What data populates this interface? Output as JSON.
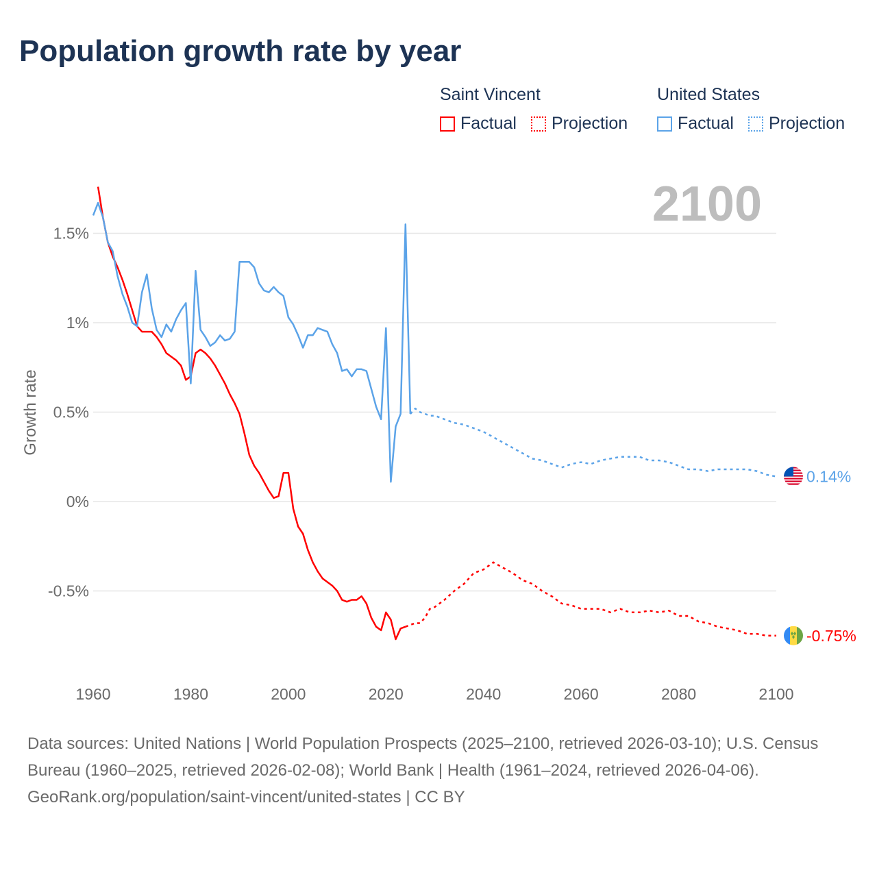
{
  "chart_data": {
    "type": "line",
    "title": "Population growth rate by year",
    "ylabel": "Growth rate",
    "xlabel": "",
    "xlim": [
      1960,
      2100
    ],
    "ylim": [
      -0.9,
      1.8
    ],
    "x_ticks": [
      1960,
      1980,
      2000,
      2020,
      2040,
      2060,
      2080,
      2100
    ],
    "x_tick_labels": [
      "1960",
      "1980",
      "2000",
      "2020",
      "2040",
      "2060",
      "2080",
      "2100"
    ],
    "y_ticks": [
      1.5,
      1,
      0.5,
      0,
      -0.5
    ],
    "y_tick_labels": [
      "1.5%",
      "1%",
      "0.5%",
      "0%",
      "-0.5%"
    ],
    "grid": true,
    "year_watermark": "2100",
    "legend": {
      "placement": "top-right",
      "groups": [
        {
          "name": "Saint Vincent",
          "factual": "Factual",
          "projection": "Projection",
          "color": "#ff0000"
        },
        {
          "name": "United States",
          "factual": "Factual",
          "projection": "Projection",
          "color": "#5ba3e8"
        }
      ]
    },
    "series": [
      {
        "name": "Saint Vincent",
        "kind": "factual",
        "color": "#ff0000",
        "x": [
          1961,
          1962,
          1963,
          1964,
          1965,
          1966,
          1967,
          1968,
          1969,
          1970,
          1971,
          1972,
          1973,
          1974,
          1975,
          1976,
          1977,
          1978,
          1979,
          1980,
          1981,
          1982,
          1983,
          1984,
          1985,
          1986,
          1987,
          1988,
          1989,
          1990,
          1991,
          1992,
          1993,
          1994,
          1995,
          1996,
          1997,
          1998,
          1999,
          2000,
          2001,
          2002,
          2003,
          2004,
          2005,
          2006,
          2007,
          2008,
          2009,
          2010,
          2011,
          2012,
          2013,
          2014,
          2015,
          2016,
          2017,
          2018,
          2019,
          2020,
          2021,
          2022,
          2023,
          2024
        ],
        "y": [
          1.76,
          1.59,
          1.45,
          1.37,
          1.31,
          1.24,
          1.16,
          1.07,
          0.98,
          0.95,
          0.95,
          0.95,
          0.92,
          0.88,
          0.83,
          0.81,
          0.79,
          0.76,
          0.68,
          0.7,
          0.83,
          0.85,
          0.83,
          0.8,
          0.76,
          0.71,
          0.66,
          0.6,
          0.55,
          0.49,
          0.38,
          0.26,
          0.2,
          0.16,
          0.11,
          0.06,
          0.02,
          0.03,
          0.16,
          0.16,
          -0.04,
          -0.14,
          -0.18,
          -0.27,
          -0.34,
          -0.39,
          -0.43,
          -0.45,
          -0.47,
          -0.5,
          -0.55,
          -0.56,
          -0.55,
          -0.55,
          -0.53,
          -0.57,
          -0.65,
          -0.7,
          -0.72,
          -0.62,
          -0.66,
          -0.77,
          -0.71,
          -0.7
        ]
      },
      {
        "name": "Saint Vincent",
        "kind": "projection",
        "color": "#ff0000",
        "x": [
          2024,
          2025,
          2026,
          2027,
          2028,
          2029,
          2030,
          2032,
          2034,
          2036,
          2038,
          2040,
          2042,
          2044,
          2046,
          2048,
          2050,
          2052,
          2054,
          2056,
          2058,
          2060,
          2062,
          2064,
          2066,
          2068,
          2070,
          2072,
          2074,
          2076,
          2078,
          2080,
          2082,
          2084,
          2086,
          2088,
          2090,
          2092,
          2094,
          2096,
          2098,
          2100
        ],
        "y": [
          -0.7,
          -0.69,
          -0.68,
          -0.68,
          -0.65,
          -0.6,
          -0.59,
          -0.55,
          -0.5,
          -0.46,
          -0.4,
          -0.38,
          -0.34,
          -0.37,
          -0.4,
          -0.44,
          -0.46,
          -0.5,
          -0.53,
          -0.57,
          -0.58,
          -0.6,
          -0.6,
          -0.6,
          -0.62,
          -0.6,
          -0.62,
          -0.62,
          -0.61,
          -0.62,
          -0.61,
          -0.64,
          -0.64,
          -0.67,
          -0.68,
          -0.7,
          -0.71,
          -0.72,
          -0.74,
          -0.74,
          -0.75,
          -0.75
        ]
      },
      {
        "name": "United States",
        "kind": "factual",
        "color": "#5ba3e8",
        "x": [
          1960,
          1961,
          1962,
          1963,
          1964,
          1965,
          1966,
          1967,
          1968,
          1969,
          1970,
          1971,
          1972,
          1973,
          1974,
          1975,
          1976,
          1977,
          1978,
          1979,
          1980,
          1981,
          1982,
          1983,
          1984,
          1985,
          1986,
          1987,
          1988,
          1989,
          1990,
          1991,
          1992,
          1993,
          1994,
          1995,
          1996,
          1997,
          1998,
          1999,
          2000,
          2001,
          2002,
          2003,
          2004,
          2005,
          2006,
          2007,
          2008,
          2009,
          2010,
          2011,
          2012,
          2013,
          2014,
          2015,
          2016,
          2017,
          2018,
          2019,
          2020,
          2021,
          2022,
          2023,
          2024,
          2025
        ],
        "y": [
          1.6,
          1.67,
          1.59,
          1.45,
          1.4,
          1.26,
          1.16,
          1.09,
          1.0,
          0.98,
          1.17,
          1.27,
          1.08,
          0.96,
          0.92,
          0.99,
          0.95,
          1.02,
          1.07,
          1.11,
          0.66,
          1.29,
          0.96,
          0.92,
          0.87,
          0.89,
          0.93,
          0.9,
          0.91,
          0.95,
          1.34,
          1.34,
          1.34,
          1.31,
          1.22,
          1.18,
          1.17,
          1.2,
          1.17,
          1.15,
          1.03,
          0.99,
          0.93,
          0.86,
          0.93,
          0.93,
          0.97,
          0.96,
          0.95,
          0.88,
          0.83,
          0.73,
          0.74,
          0.7,
          0.74,
          0.74,
          0.73,
          0.63,
          0.53,
          0.46,
          0.97,
          0.11,
          0.42,
          0.49,
          1.55,
          0.49
        ]
      },
      {
        "name": "United States",
        "kind": "projection",
        "color": "#5ba3e8",
        "x": [
          2025,
          2026,
          2027,
          2028,
          2029,
          2030,
          2032,
          2034,
          2036,
          2038,
          2040,
          2042,
          2044,
          2046,
          2048,
          2050,
          2052,
          2054,
          2056,
          2058,
          2060,
          2062,
          2064,
          2066,
          2068,
          2070,
          2072,
          2074,
          2076,
          2078,
          2080,
          2082,
          2084,
          2086,
          2088,
          2090,
          2092,
          2094,
          2096,
          2098,
          2100
        ],
        "y": [
          0.49,
          0.52,
          0.5,
          0.49,
          0.48,
          0.48,
          0.46,
          0.44,
          0.43,
          0.41,
          0.39,
          0.36,
          0.33,
          0.3,
          0.27,
          0.24,
          0.23,
          0.21,
          0.19,
          0.21,
          0.22,
          0.21,
          0.23,
          0.24,
          0.25,
          0.25,
          0.25,
          0.23,
          0.23,
          0.22,
          0.2,
          0.18,
          0.18,
          0.17,
          0.18,
          0.18,
          0.18,
          0.18,
          0.17,
          0.15,
          0.14
        ]
      }
    ],
    "end_labels": [
      {
        "name": "United States",
        "value": 0.14,
        "label": "0.14%",
        "color": "#5ba3e8",
        "flag": "us-flag-icon"
      },
      {
        "name": "Saint Vincent",
        "value": -0.75,
        "label": "-0.75%",
        "color": "#ff0000",
        "flag": "svg-flag-icon"
      }
    ]
  },
  "footer": {
    "sources": "Data sources: United Nations | World Population Prospects (2025–2100, retrieved 2026-03-10); U.S. Census Bureau (1960–2025, retrieved 2026-02-08); World Bank | Health (1961–2024, retrieved 2026-04-06).",
    "attribution": "GeoRank.org/population/saint-vincent/united-states | CC BY"
  }
}
